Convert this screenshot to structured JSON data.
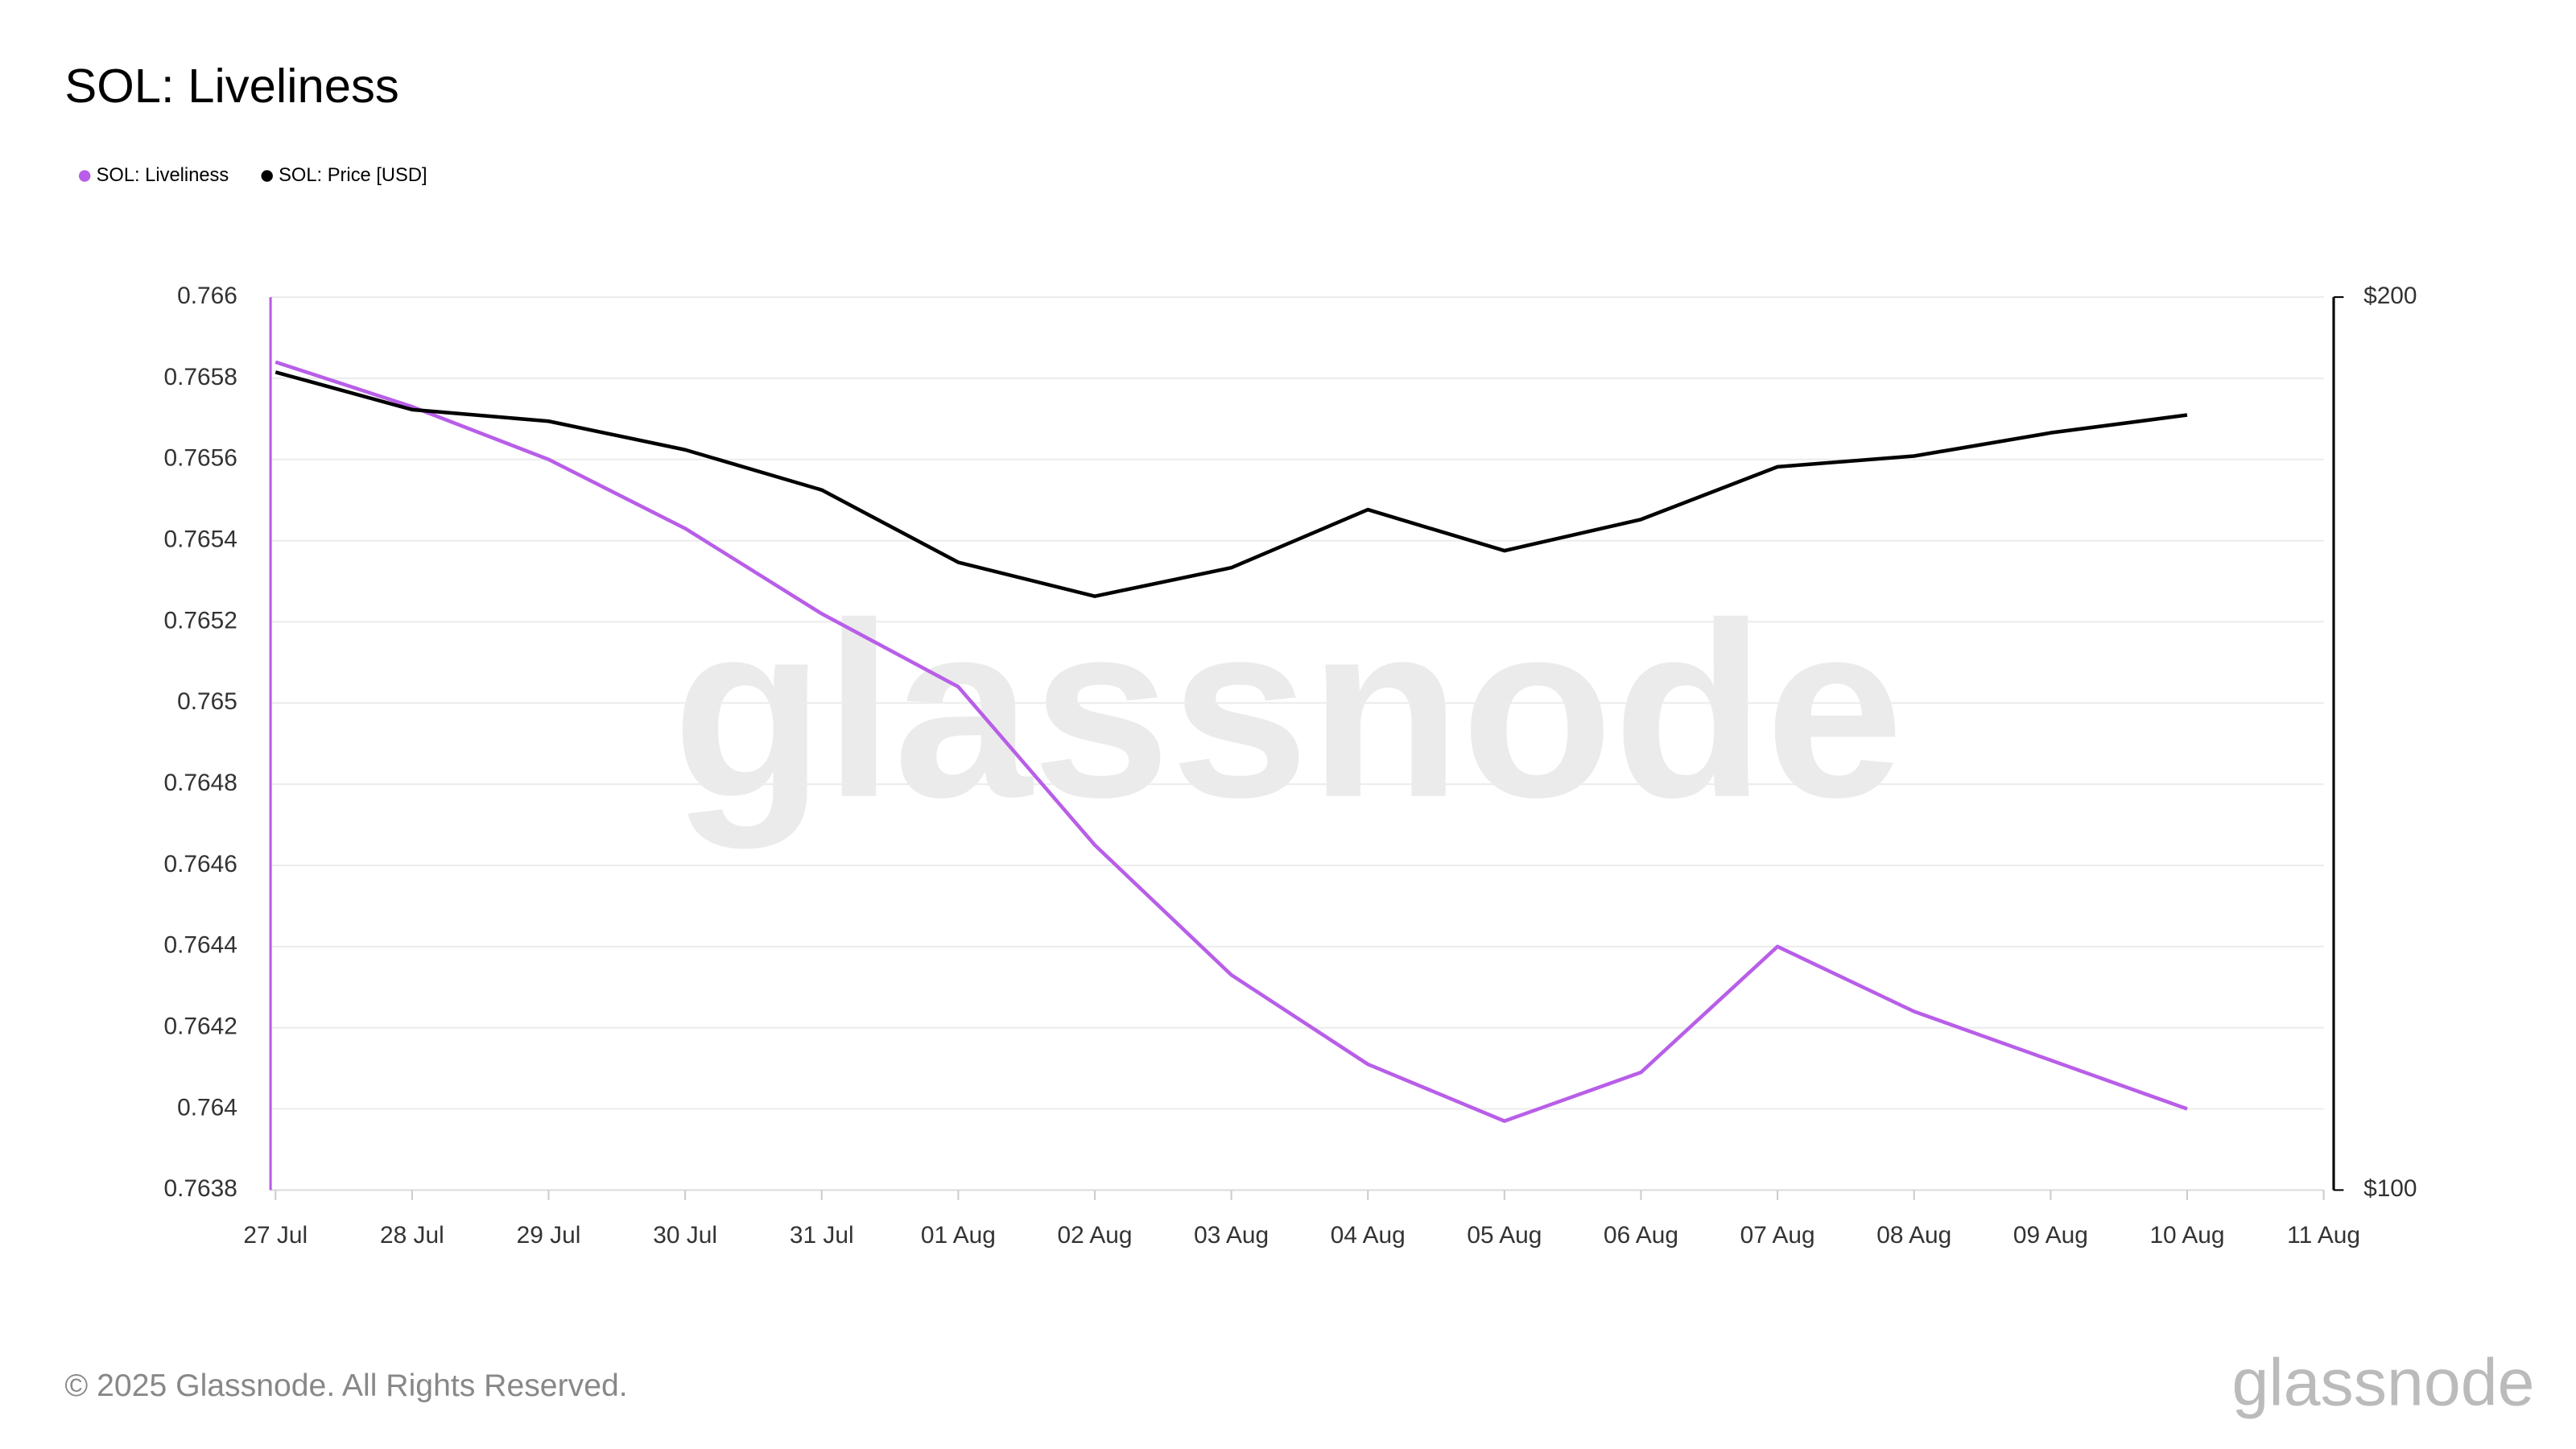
{
  "chart_data": {
    "type": "line",
    "title": "SOL: Liveliness",
    "categories": [
      "27 Jul",
      "28 Jul",
      "29 Jul",
      "30 Jul",
      "31 Jul",
      "01 Aug",
      "02 Aug",
      "03 Aug",
      "04 Aug",
      "05 Aug",
      "06 Aug",
      "07 Aug",
      "08 Aug",
      "09 Aug",
      "10 Aug",
      "11 Aug"
    ],
    "series": [
      {
        "name": "SOL: Liveliness",
        "color": "#b85ee8",
        "axis": "y",
        "values": [
          0.76584,
          0.76573,
          0.7656,
          0.76543,
          0.76522,
          0.76504,
          0.76465,
          0.76433,
          0.76411,
          0.76397,
          0.76409,
          0.7644,
          0.76424,
          0.76412,
          0.764,
          null
        ]
      },
      {
        "name": "SOL: Price [USD]",
        "color": "#000000",
        "axis": "y2",
        "values": [
          191.6,
          187.4,
          186.1,
          182.9,
          178.4,
          170.3,
          166.5,
          169.7,
          176.2,
          171.6,
          175.1,
          181.0,
          182.2,
          184.8,
          186.8,
          null
        ]
      }
    ],
    "ylim": [
      0.7638,
      0.766
    ],
    "yticks": [
      0.7638,
      0.764,
      0.7642,
      0.7644,
      0.7646,
      0.7648,
      0.765,
      0.7652,
      0.7654,
      0.7656,
      0.7658,
      0.766
    ],
    "y2lim": [
      100,
      200
    ],
    "y2ticks": [
      {
        "value": 100,
        "label": "$100"
      },
      {
        "value": 200,
        "label": "$200"
      }
    ],
    "grid": true,
    "legend": "top-left",
    "watermark": "glassnode",
    "footer": "© 2025 Glassnode. All Rights Reserved.",
    "logo": "glassnode"
  }
}
